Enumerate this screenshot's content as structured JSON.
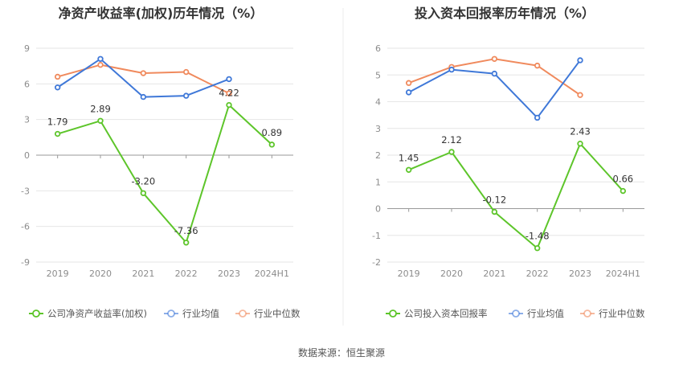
{
  "footer": {
    "source": "数据来源：恒生聚源"
  },
  "chart_data": [
    {
      "type": "line",
      "title": "净资产收益率(加权)历年情况（%）",
      "categories": [
        "2019",
        "2020",
        "2021",
        "2022",
        "2023",
        "2024H1"
      ],
      "ylim": [
        -9,
        9
      ],
      "yticks": [
        -9,
        -6,
        -3,
        0,
        3,
        6,
        9
      ],
      "grid": true,
      "legend_position": "bottom",
      "series": [
        {
          "name": "公司净资产收益率(加权)",
          "color": "#5dc52a",
          "values": [
            1.79,
            2.89,
            -3.2,
            -7.36,
            4.22,
            0.89
          ],
          "labels": [
            "1.79",
            "2.89",
            "-3.20",
            "-7.36",
            "4.22",
            "0.89"
          ]
        },
        {
          "name": "行业均值",
          "color": "#3f78d8",
          "values": [
            5.7,
            8.1,
            4.9,
            5.0,
            6.4,
            null
          ]
        },
        {
          "name": "行业中位数",
          "color": "#f08a5d",
          "values": [
            6.6,
            7.6,
            6.9,
            7.0,
            5.2,
            null
          ]
        }
      ]
    },
    {
      "type": "line",
      "title": "投入资本回报率历年情况（%）",
      "categories": [
        "2019",
        "2020",
        "2021",
        "2022",
        "2023",
        "2024H1"
      ],
      "ylim": [
        -2,
        6
      ],
      "yticks": [
        -2,
        -1,
        0,
        1,
        2,
        3,
        4,
        5,
        6
      ],
      "grid": true,
      "legend_position": "bottom",
      "series": [
        {
          "name": "公司投入资本回报率",
          "color": "#5dc52a",
          "values": [
            1.45,
            2.12,
            -0.12,
            -1.48,
            2.43,
            0.66
          ],
          "labels": [
            "1.45",
            "2.12",
            "-0.12",
            "-1.48",
            "2.43",
            "0.66"
          ]
        },
        {
          "name": "行业均值",
          "color": "#3f78d8",
          "values": [
            4.35,
            5.2,
            5.05,
            3.4,
            5.55,
            null
          ]
        },
        {
          "name": "行业中位数",
          "color": "#f08a5d",
          "values": [
            4.7,
            5.3,
            5.6,
            5.35,
            4.25,
            null
          ]
        }
      ]
    }
  ]
}
